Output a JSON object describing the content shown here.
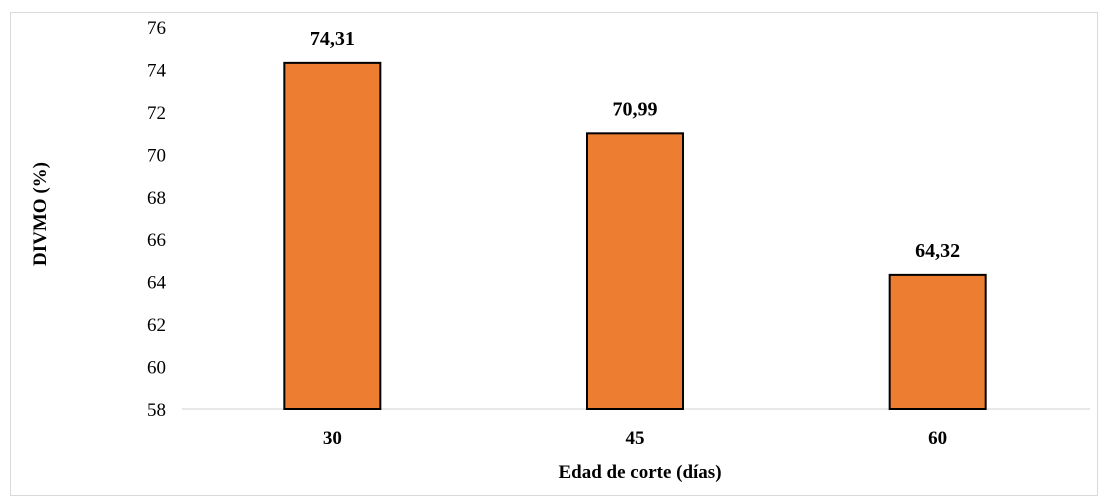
{
  "chart_data": {
    "type": "bar",
    "categories": [
      "30",
      "45",
      "60"
    ],
    "values": [
      74.31,
      70.99,
      64.32
    ],
    "data_labels": [
      "74,31",
      "70,99",
      "64,32"
    ],
    "xlabel": "Edad de corte (días)",
    "ylabel": "DIVMO (%)",
    "ylim": [
      58,
      76
    ],
    "yticks": [
      "58",
      "60",
      "62",
      "64",
      "66",
      "68",
      "70",
      "72",
      "74",
      "76"
    ],
    "grid": false,
    "bar_color": "#ED7D31",
    "bar_border_color": "#000000"
  }
}
